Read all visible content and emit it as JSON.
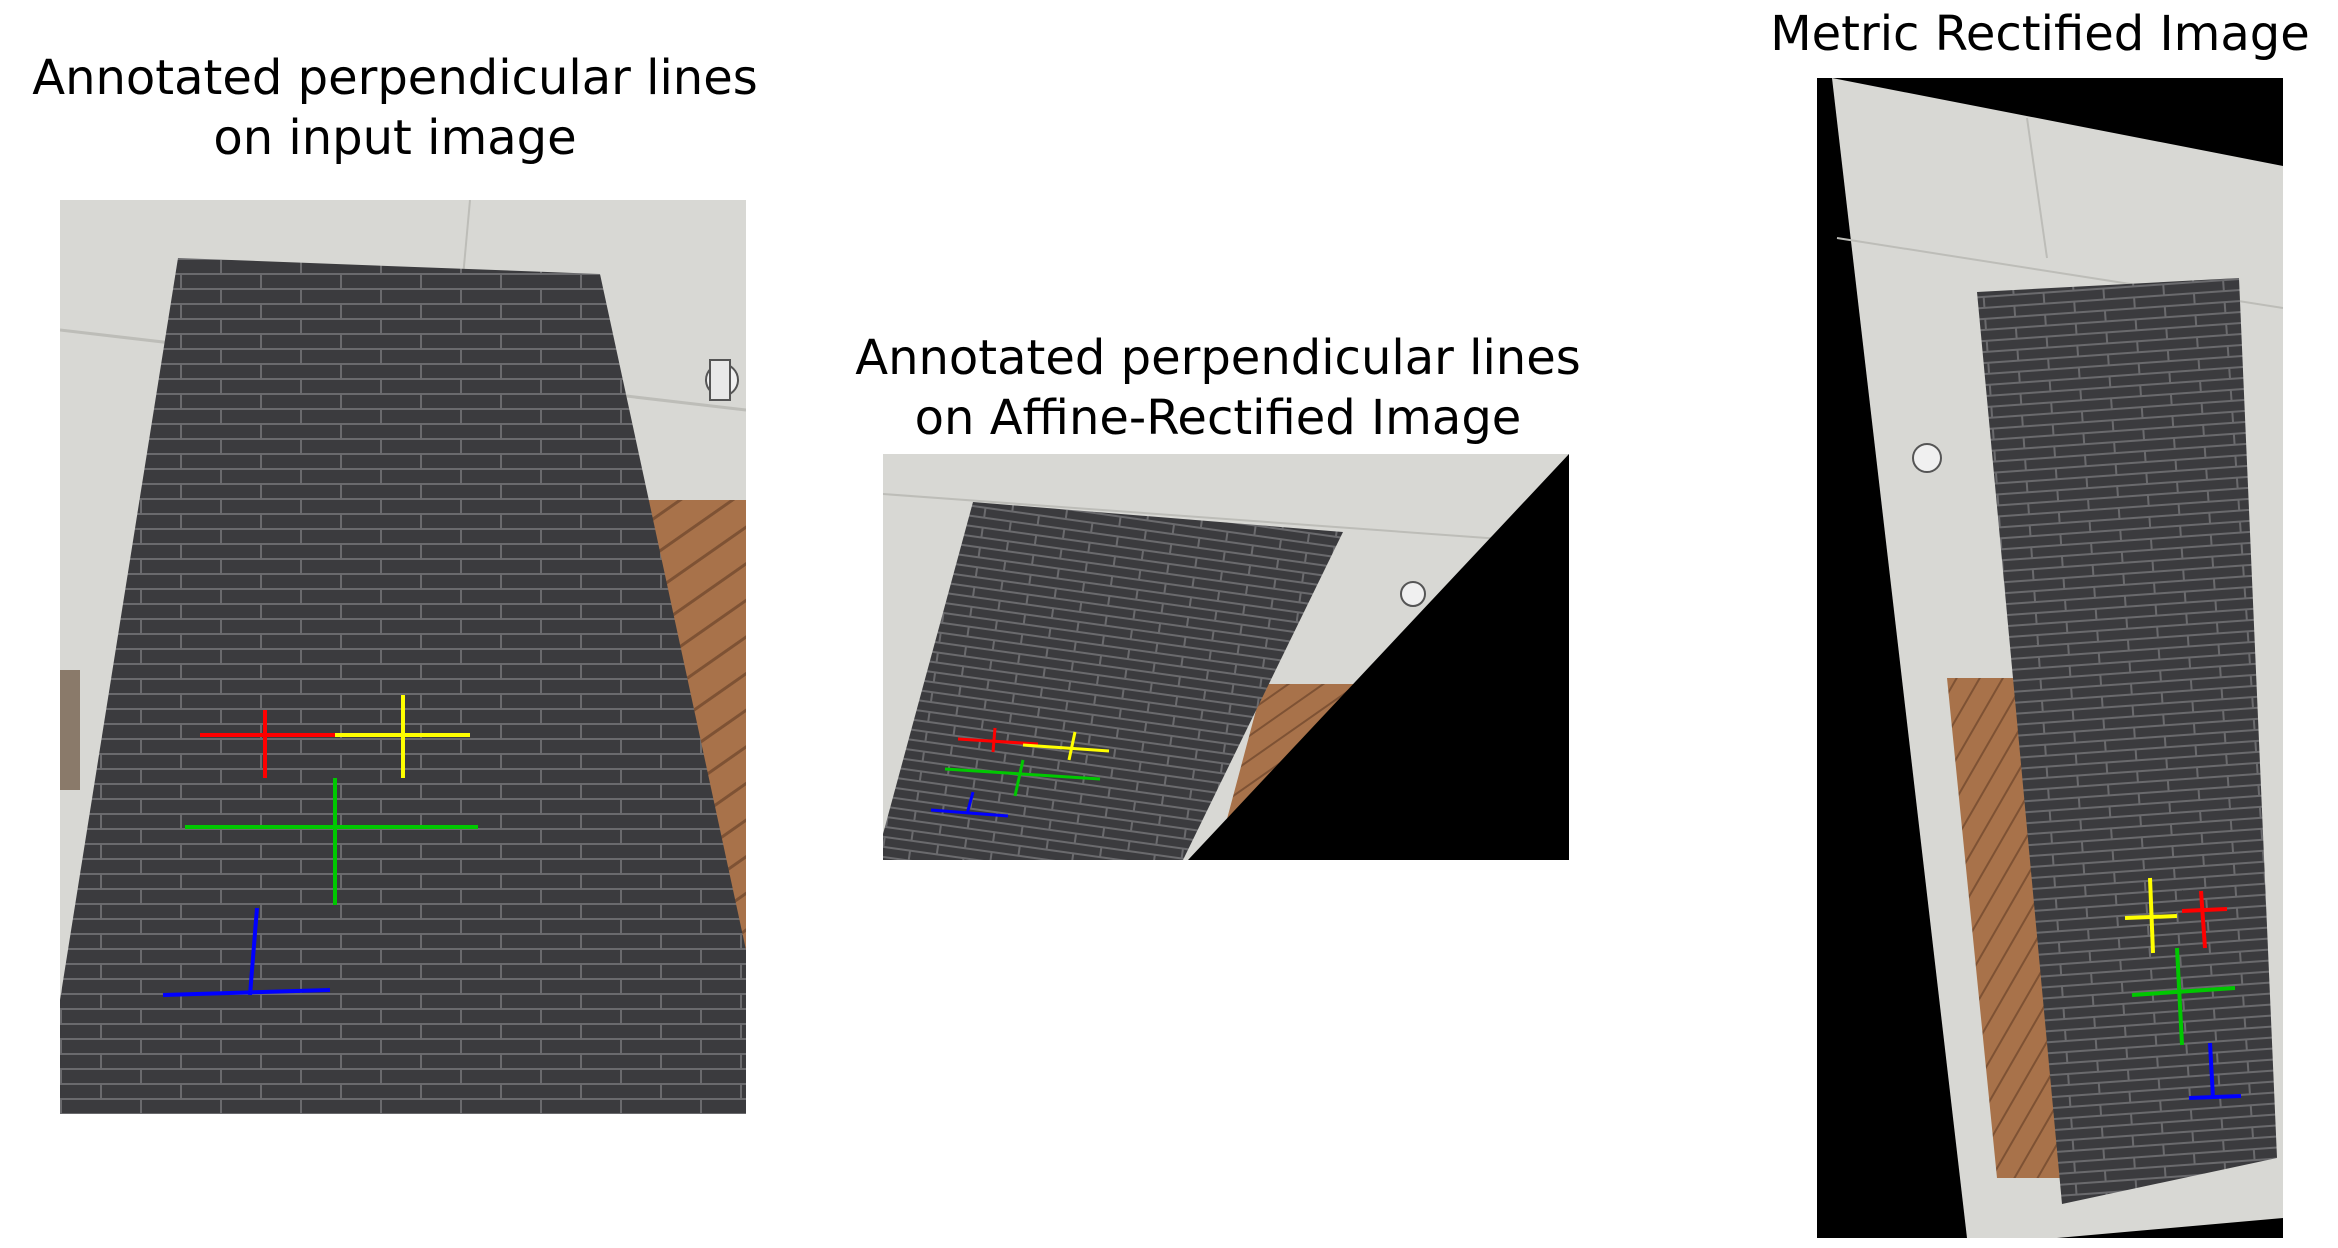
{
  "panels": [
    {
      "title": "Annotated perpendicular lines\non input image",
      "lines": [
        {
          "color": "#ff0000"
        },
        {
          "color": "#ffff00"
        },
        {
          "color": "#00c800"
        },
        {
          "color": "#0000ff"
        }
      ]
    },
    {
      "title": "Annotated perpendicular lines\n on Affine-Rectified Image",
      "lines": [
        {
          "color": "#ff0000"
        },
        {
          "color": "#ffff00"
        },
        {
          "color": "#00c800"
        },
        {
          "color": "#0000ff"
        }
      ]
    },
    {
      "title": "Metric Rectified Image",
      "lines": [
        {
          "color": "#ffff00"
        },
        {
          "color": "#ff0000"
        },
        {
          "color": "#00c800"
        },
        {
          "color": "#0000ff"
        }
      ]
    }
  ],
  "colors": {
    "brick": "#3b3b3e",
    "mortar": "#6a6a6d",
    "ceiling": "#d8d8d4",
    "wood": "#a8724a",
    "black": "#000000"
  }
}
